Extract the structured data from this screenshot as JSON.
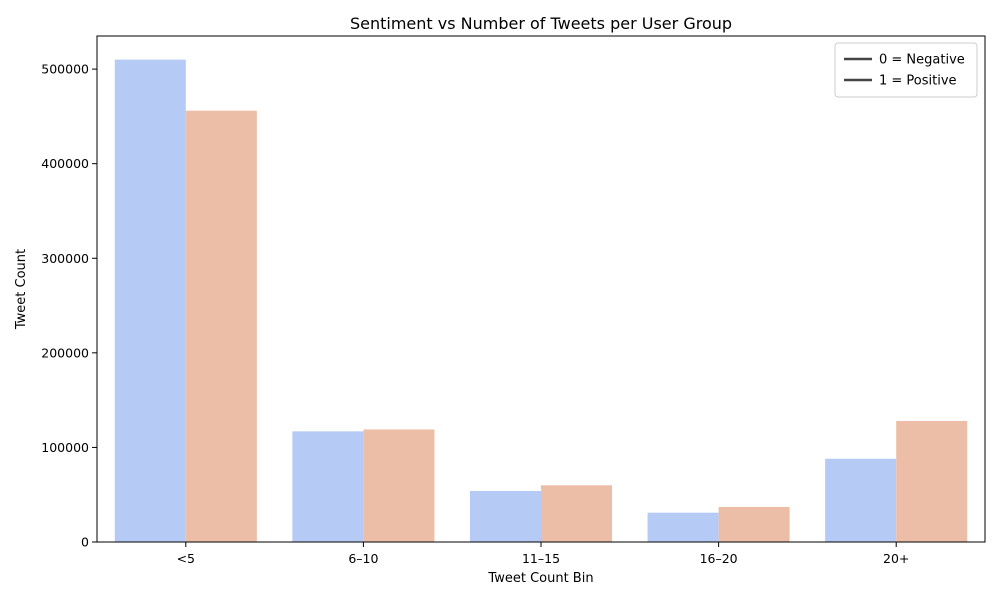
{
  "chart_data": {
    "type": "bar",
    "title": "Sentiment vs Number of Tweets per User Group",
    "xlabel": "Tweet Count Bin",
    "ylabel": "Tweet Count",
    "categories": [
      "<5",
      "6–10",
      "11–15",
      "16–20",
      "20+"
    ],
    "series": [
      {
        "name": "0 = Negative",
        "color": "#b5cbf5",
        "values": [
          510000,
          117000,
          54000,
          31000,
          88000
        ]
      },
      {
        "name": "1 = Positive",
        "color": "#ecbea7",
        "values": [
          456000,
          119000,
          60000,
          37000,
          128000
        ]
      }
    ],
    "ylim": [
      0,
      535000
    ],
    "yticks": [
      0,
      100000,
      200000,
      300000,
      400000,
      500000
    ],
    "ytick_labels": [
      "0",
      "100000",
      "200000",
      "300000",
      "400000",
      "500000"
    ],
    "legend": {
      "placement": "top-right",
      "entries": [
        "0 = Negative",
        "1 = Positive"
      ],
      "line_color": "#444444"
    },
    "grid": false
  }
}
